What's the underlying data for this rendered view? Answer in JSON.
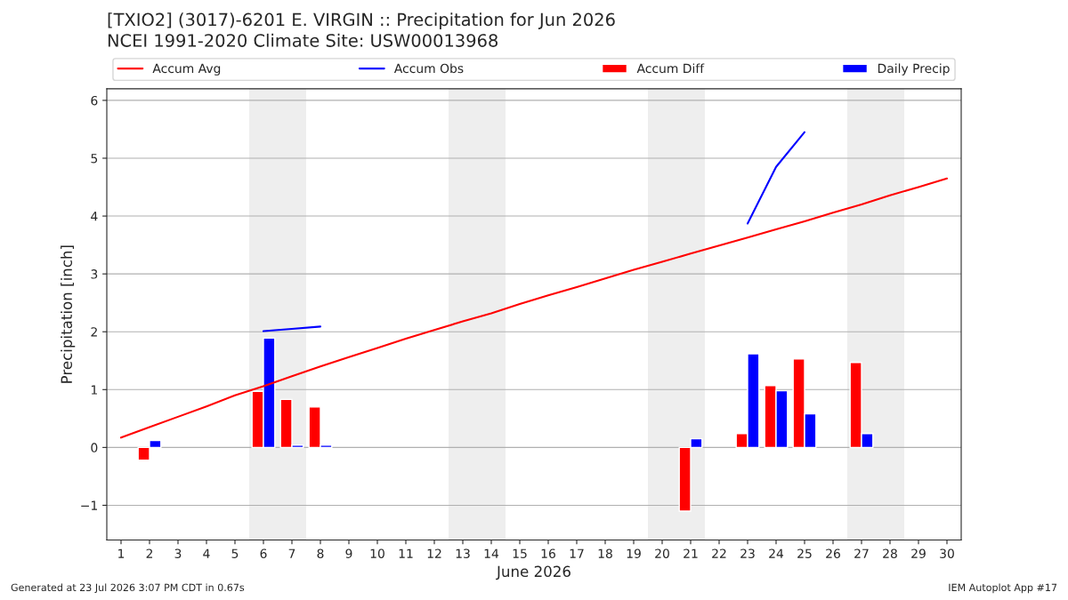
{
  "chart_data": {
    "type": "bar",
    "title": "[TXIO2] (3017)-6201 E. VIRGIN :: Precipitation for Jun 2026",
    "subtitle": "NCEI 1991-2020 Climate Site: USW00013968",
    "xlabel": "June 2026",
    "ylabel": "Precipitation [inch]",
    "xlim": [
      0.5,
      30.5
    ],
    "xticks": [
      1,
      2,
      3,
      4,
      5,
      6,
      7,
      8,
      9,
      10,
      11,
      12,
      13,
      14,
      15,
      16,
      17,
      18,
      19,
      20,
      21,
      22,
      23,
      24,
      25,
      26,
      27,
      28,
      29,
      30
    ],
    "ylim": [
      -1.6,
      6.2
    ],
    "yticks": [
      {
        "value": -1,
        "label": "−1"
      },
      0,
      1,
      2,
      3,
      4,
      5,
      6
    ],
    "grid": "y",
    "legend": "top",
    "bands": [
      {
        "axis": "x",
        "from": 5.5,
        "to": 7.5,
        "color": "#eeeeee"
      },
      {
        "axis": "x",
        "from": 12.5,
        "to": 14.5,
        "color": "#eeeeee"
      },
      {
        "axis": "x",
        "from": 19.5,
        "to": 21.5,
        "color": "#eeeeee"
      },
      {
        "axis": "x",
        "from": 26.5,
        "to": 28.5,
        "color": "#eeeeee"
      }
    ],
    "series": [
      {
        "name": "Accum Avg",
        "type": "line",
        "color": "#ff0000",
        "x": [
          1,
          2,
          3,
          4,
          5,
          6,
          7,
          8,
          9,
          10,
          11,
          12,
          13,
          14,
          15,
          16,
          17,
          18,
          19,
          20,
          21,
          22,
          23,
          24,
          25,
          26,
          27,
          28,
          29,
          30
        ],
        "values": [
          0.17,
          0.35,
          0.53,
          0.71,
          0.9,
          1.06,
          1.23,
          1.4,
          1.56,
          1.72,
          1.88,
          2.03,
          2.18,
          2.32,
          2.48,
          2.63,
          2.77,
          2.92,
          3.07,
          3.21,
          3.35,
          3.49,
          3.63,
          3.77,
          3.91,
          4.06,
          4.2,
          4.36,
          4.5,
          4.65
        ]
      },
      {
        "name": "Accum Obs",
        "type": "line",
        "color": "#0000ff",
        "x": [
          6,
          7,
          8
        ],
        "values": [
          2.01,
          2.05,
          2.09
        ]
      },
      {
        "name": null,
        "type": "line",
        "color": "#0000ff",
        "x": [
          23,
          24,
          25
        ],
        "values": [
          3.87,
          4.85,
          5.45
        ]
      },
      {
        "name": "Accum Diff",
        "color": "#ff0000",
        "x": [
          2,
          6,
          7,
          8,
          21,
          23,
          24,
          25,
          27
        ],
        "values": [
          -0.22,
          0.97,
          0.83,
          0.7,
          -1.1,
          0.24,
          1.07,
          1.53,
          1.47
        ]
      },
      {
        "name": "Daily Precip",
        "color": "#0000ff",
        "x": [
          2,
          6,
          7,
          8,
          21,
          23,
          24,
          25,
          27
        ],
        "values": [
          0.12,
          1.89,
          0.04,
          0.04,
          0.15,
          1.62,
          0.98,
          0.58,
          0.24
        ]
      }
    ],
    "annotations": [
      "Generated at 23 Jul 2026 3:07 PM CDT in 0.67s",
      "IEM Autoplot App #17"
    ]
  }
}
